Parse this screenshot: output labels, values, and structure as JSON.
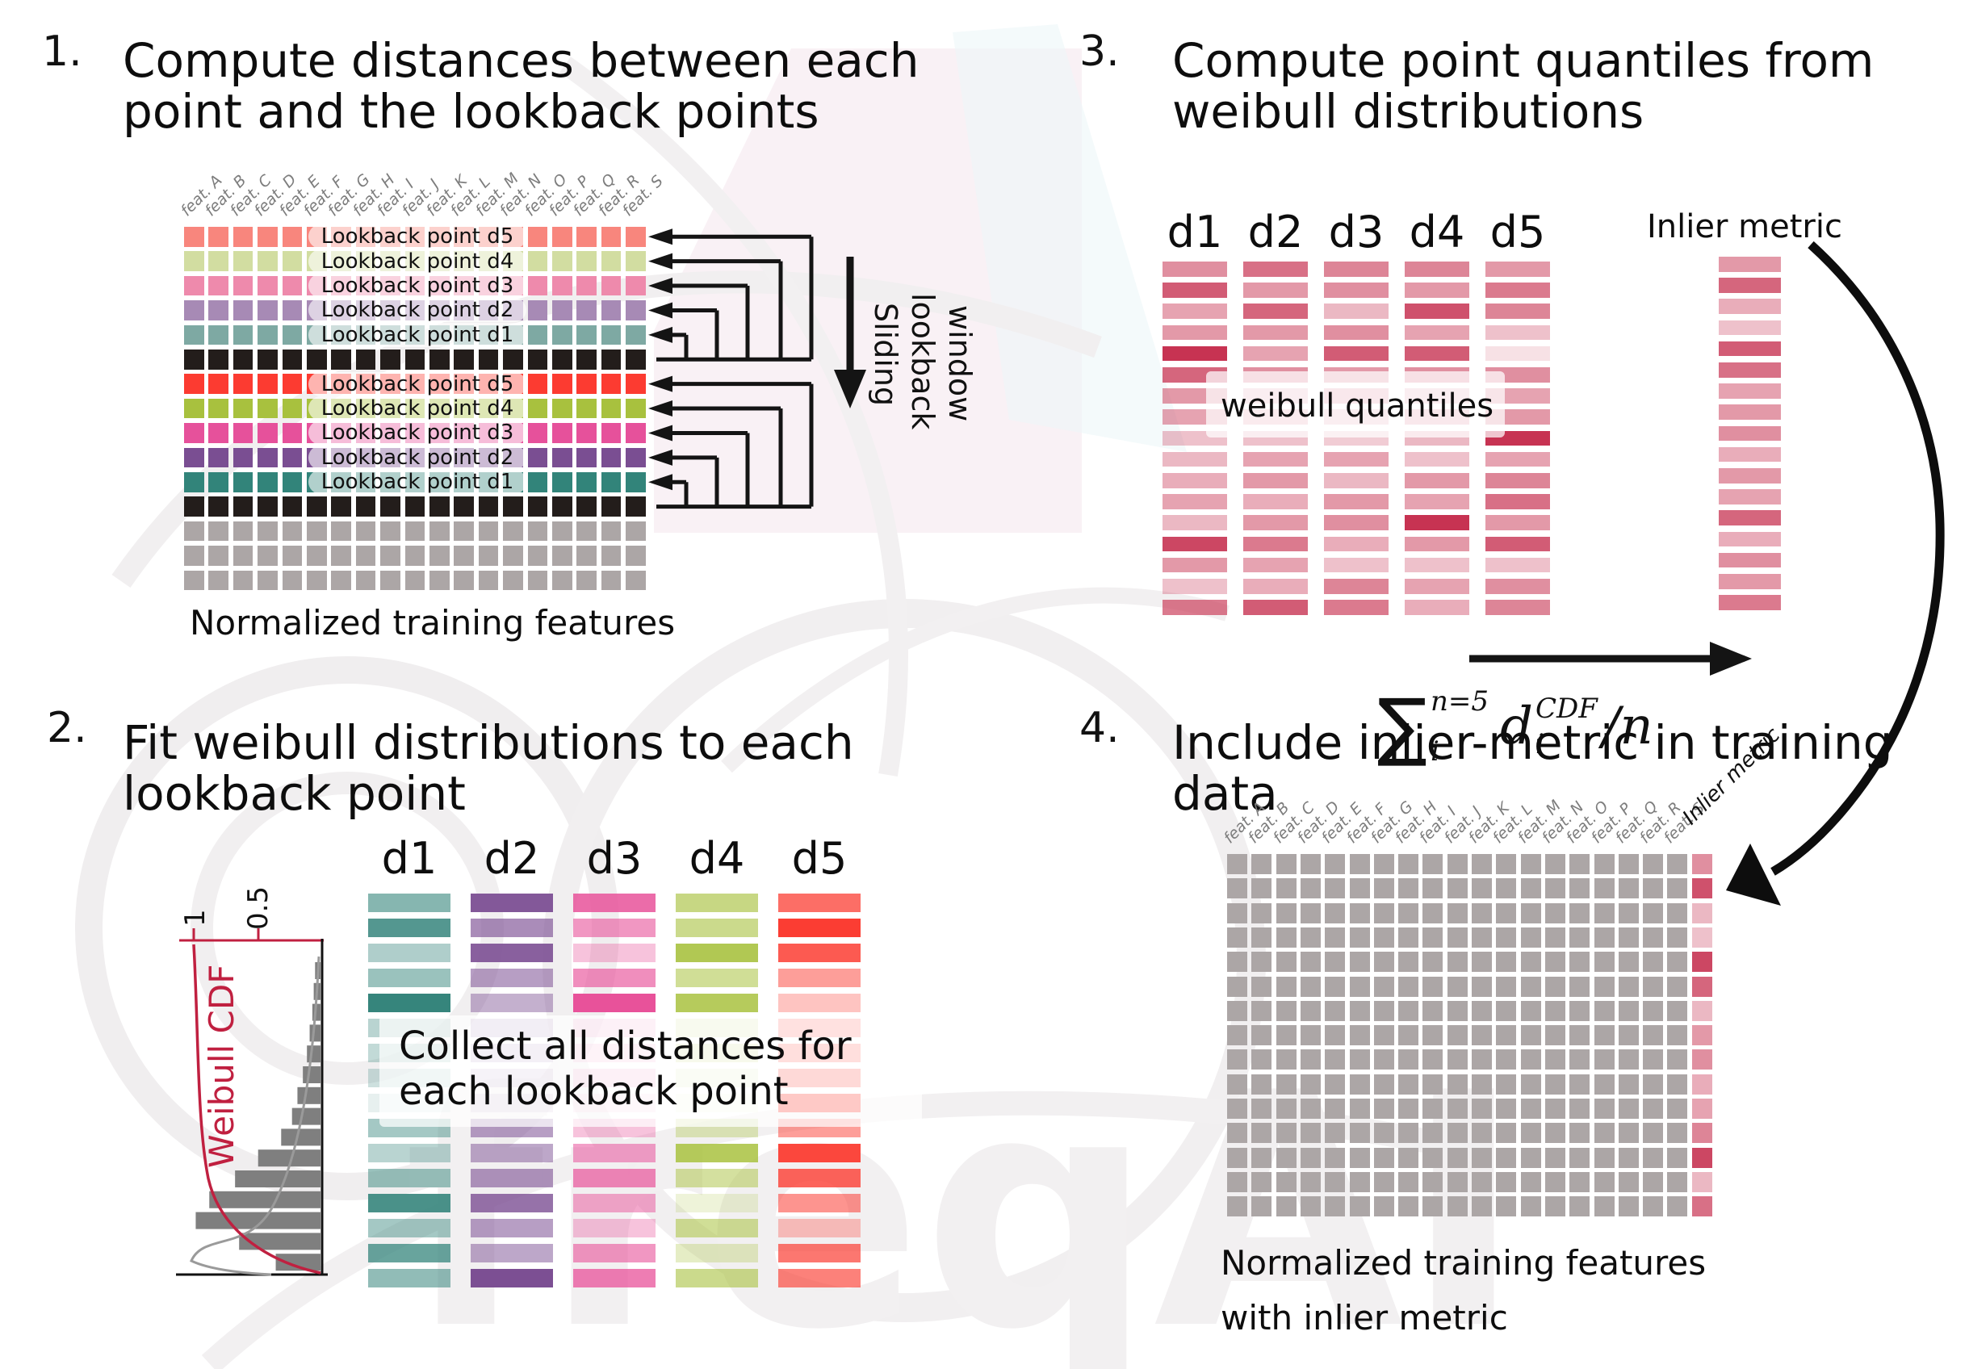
{
  "colors": {
    "black_row": "#231d1b",
    "gray_row": "#aca6a6",
    "crimson": "#c73352",
    "hist_bar": "#7f7f7f",
    "axis_red": "#c02040",
    "ink": "#141414",
    "group1": [
      "#f8867d",
      "#d2dda1",
      "#ee8aac",
      "#a78ab5",
      "#7ea9a3"
    ],
    "group2": [
      "#fc3b31",
      "#a8c13e",
      "#e6519b",
      "#7a4e92",
      "#32847a"
    ],
    "s2_columns": [
      "#36857c",
      "#7c4f93",
      "#e8529a",
      "#a9c240",
      "#fb3d33"
    ]
  },
  "features": [
    "feat. A",
    "feat. B",
    "feat. C",
    "feat. D",
    "feat. E",
    "feat. F",
    "feat. G",
    "feat. H",
    "feat. I",
    "feat. J",
    "feat. K",
    "feat. L",
    "feat. M",
    "feat. N",
    "feat. O",
    "feat. P",
    "feat. Q",
    "feat. R",
    "feat. S"
  ],
  "lookback_labels": [
    "Lookback point d5",
    "Lookback point d4",
    "Lookback point d3",
    "Lookback point d2",
    "Lookback point d1"
  ],
  "d_labels": [
    "d1",
    "d2",
    "d3",
    "d4",
    "d5"
  ],
  "step1": {
    "number": "1.",
    "title_line1": "Compute distances between each",
    "title_line2": "point and the lookback points",
    "caption": "Normalized training features",
    "sliding_words": [
      "Sliding",
      "lookback",
      "window"
    ]
  },
  "step2": {
    "number": "2.",
    "title_line1": "Fit weibull distributions to each",
    "title_line2": "lookback point",
    "overlay_line1": "Collect all distances for",
    "overlay_line2": "each lookback point",
    "hist": {
      "ylabel": "Weibull CDF",
      "tick_1": "1",
      "tick_05": "0.5",
      "bar_fractions": [
        0.04,
        0.05,
        0.06,
        0.08,
        0.1,
        0.13,
        0.17,
        0.21,
        0.29,
        0.46,
        0.63,
        0.82,
        0.92,
        0.6,
        0.33
      ]
    },
    "column_alphas": [
      [
        0.6,
        0.85,
        0.4,
        0.5,
        1.0,
        0.35,
        0.3,
        0.25,
        0.12,
        0.45,
        0.35,
        0.5,
        0.9,
        0.45,
        0.75,
        0.55
      ],
      [
        0.95,
        0.65,
        0.9,
        0.55,
        0.45,
        0.35,
        0.3,
        0.25,
        0.2,
        0.55,
        0.5,
        0.6,
        0.8,
        0.55,
        0.5,
        1.0
      ],
      [
        0.85,
        0.6,
        0.35,
        0.65,
        1.0,
        0.3,
        0.25,
        0.3,
        0.15,
        0.35,
        0.55,
        0.7,
        0.5,
        0.35,
        0.6,
        0.75
      ],
      [
        0.65,
        0.6,
        0.9,
        0.55,
        0.85,
        0.3,
        0.35,
        0.2,
        0.1,
        0.35,
        0.85,
        0.5,
        0.2,
        0.55,
        0.3,
        0.6
      ],
      [
        0.75,
        1.0,
        0.85,
        0.5,
        0.3,
        0.55,
        0.6,
        0.7,
        1.0,
        0.5,
        0.95,
        0.8,
        0.55,
        0.3,
        0.7,
        0.65
      ]
    ]
  },
  "step3": {
    "number": "3.",
    "title_line1": "Compute point quantiles from",
    "title_line2": "weibull distributions",
    "overlay": "weibull quantiles",
    "inlier_label": "Inlier metric",
    "formula": {
      "sum": "∑",
      "sum_sup": "n=5",
      "sum_sub": "i",
      "term": "d",
      "term_sup": "CDF",
      "term_sub": "i",
      "divide": "/n"
    },
    "column_alphas": [
      [
        0.55,
        0.8,
        0.45,
        0.5,
        1.0,
        0.75,
        0.5,
        0.45,
        0.3,
        0.35,
        0.4,
        0.45,
        0.35,
        0.9,
        0.5,
        0.3,
        0.65
      ],
      [
        0.7,
        0.5,
        0.75,
        0.5,
        0.45,
        0.55,
        0.3,
        0.35,
        0.3,
        0.45,
        0.5,
        0.4,
        0.5,
        0.65,
        0.45,
        0.4,
        0.8
      ],
      [
        0.6,
        0.55,
        0.35,
        0.55,
        0.8,
        0.5,
        0.4,
        0.3,
        0.25,
        0.45,
        0.35,
        0.5,
        0.55,
        0.4,
        0.3,
        0.6,
        0.65
      ],
      [
        0.6,
        0.5,
        0.85,
        0.45,
        0.8,
        0.55,
        0.3,
        0.4,
        0.35,
        0.3,
        0.5,
        0.45,
        1.0,
        0.5,
        0.3,
        0.45,
        0.4
      ],
      [
        0.5,
        0.65,
        0.6,
        0.3,
        0.15,
        0.55,
        0.45,
        0.5,
        1.0,
        0.45,
        0.6,
        0.7,
        0.5,
        0.8,
        0.3,
        0.55,
        0.6
      ]
    ],
    "inlier_alphas": [
      0.5,
      0.75,
      0.4,
      0.3,
      0.8,
      0.7,
      0.45,
      0.5,
      0.55,
      0.4,
      0.5,
      0.45,
      0.75,
      0.4,
      0.55,
      0.5,
      0.65
    ]
  },
  "step4": {
    "number": "4.",
    "title_line1": "Include inlier-metric in training",
    "title_line2": "data",
    "caption_line1": "Normalized training features",
    "caption_line2": "with inlier metric",
    "inlier_label": "Inlier metric",
    "inlier_alphas": [
      0.55,
      0.85,
      0.35,
      0.3,
      0.9,
      0.75,
      0.35,
      0.5,
      0.55,
      0.4,
      0.45,
      0.6,
      0.9,
      0.35,
      0.7
    ]
  },
  "watermark": {
    "text": "freqAI"
  }
}
